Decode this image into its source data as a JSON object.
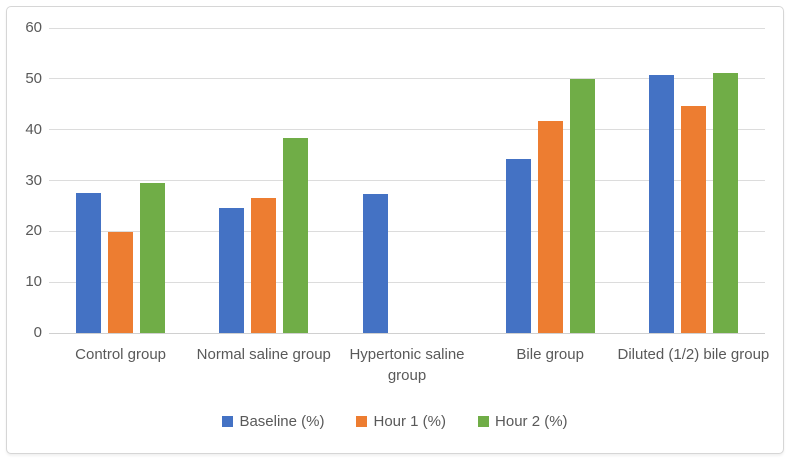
{
  "chart_data": {
    "type": "bar",
    "title": "",
    "xlabel": "",
    "ylabel": "",
    "categories": [
      "Control group",
      "Normal saline group",
      "Hypertonic saline group",
      "Bile group",
      "Diluted (1/2) bile group"
    ],
    "series": [
      {
        "name": "Baseline (%)",
        "color": "#4472C4",
        "values": [
          27.5,
          24.6,
          27.4,
          34.2,
          50.7
        ]
      },
      {
        "name": "Hour 1 (%)",
        "color": "#ED7D31",
        "values": [
          19.8,
          26.5,
          0,
          41.8,
          44.6
        ]
      },
      {
        "name": "Hour 2 (%)",
        "color": "#70AD47",
        "values": [
          29.6,
          38.3,
          0,
          50.0,
          51.2
        ]
      }
    ],
    "ylim": [
      0,
      60
    ],
    "yticks": [
      0,
      10,
      20,
      30,
      40,
      50,
      60
    ],
    "grid": true,
    "legend_position": "bottom"
  }
}
